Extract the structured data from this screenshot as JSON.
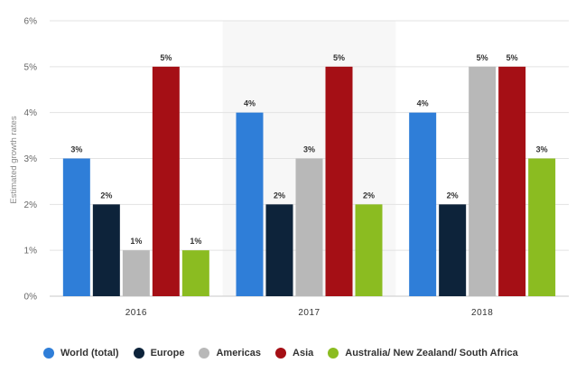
{
  "chart_data": {
    "type": "bar",
    "title": "",
    "xlabel": "",
    "ylabel": "Estimated growth rates",
    "categories": [
      "2016",
      "2017",
      "2018"
    ],
    "y_ticks": [
      "0%",
      "1%",
      "2%",
      "3%",
      "4%",
      "5%",
      "6%"
    ],
    "ylim": [
      0,
      6
    ],
    "grid": "horizontal",
    "highlighted_category": "2017",
    "legend_position": "bottom",
    "series": [
      {
        "name": "World (total)",
        "color": "#2f7ed8",
        "values": [
          3,
          4,
          4
        ],
        "labels": [
          "3%",
          "4%",
          "4%"
        ]
      },
      {
        "name": "Europe",
        "color": "#0d233a",
        "values": [
          2,
          2,
          2
        ],
        "labels": [
          "2%",
          "2%",
          "2%"
        ]
      },
      {
        "name": "Americas",
        "color": "#b8b8b8",
        "values": [
          1,
          3,
          5
        ],
        "labels": [
          "1%",
          "3%",
          "5%"
        ]
      },
      {
        "name": "Asia",
        "color": "#a50f15",
        "values": [
          5,
          5,
          5
        ],
        "labels": [
          "5%",
          "5%",
          "5%"
        ]
      },
      {
        "name": "Australia/ New Zealand/ South Africa",
        "color": "#8bbc21",
        "values": [
          1,
          2,
          3
        ],
        "labels": [
          "1%",
          "2%",
          "3%"
        ]
      }
    ]
  }
}
